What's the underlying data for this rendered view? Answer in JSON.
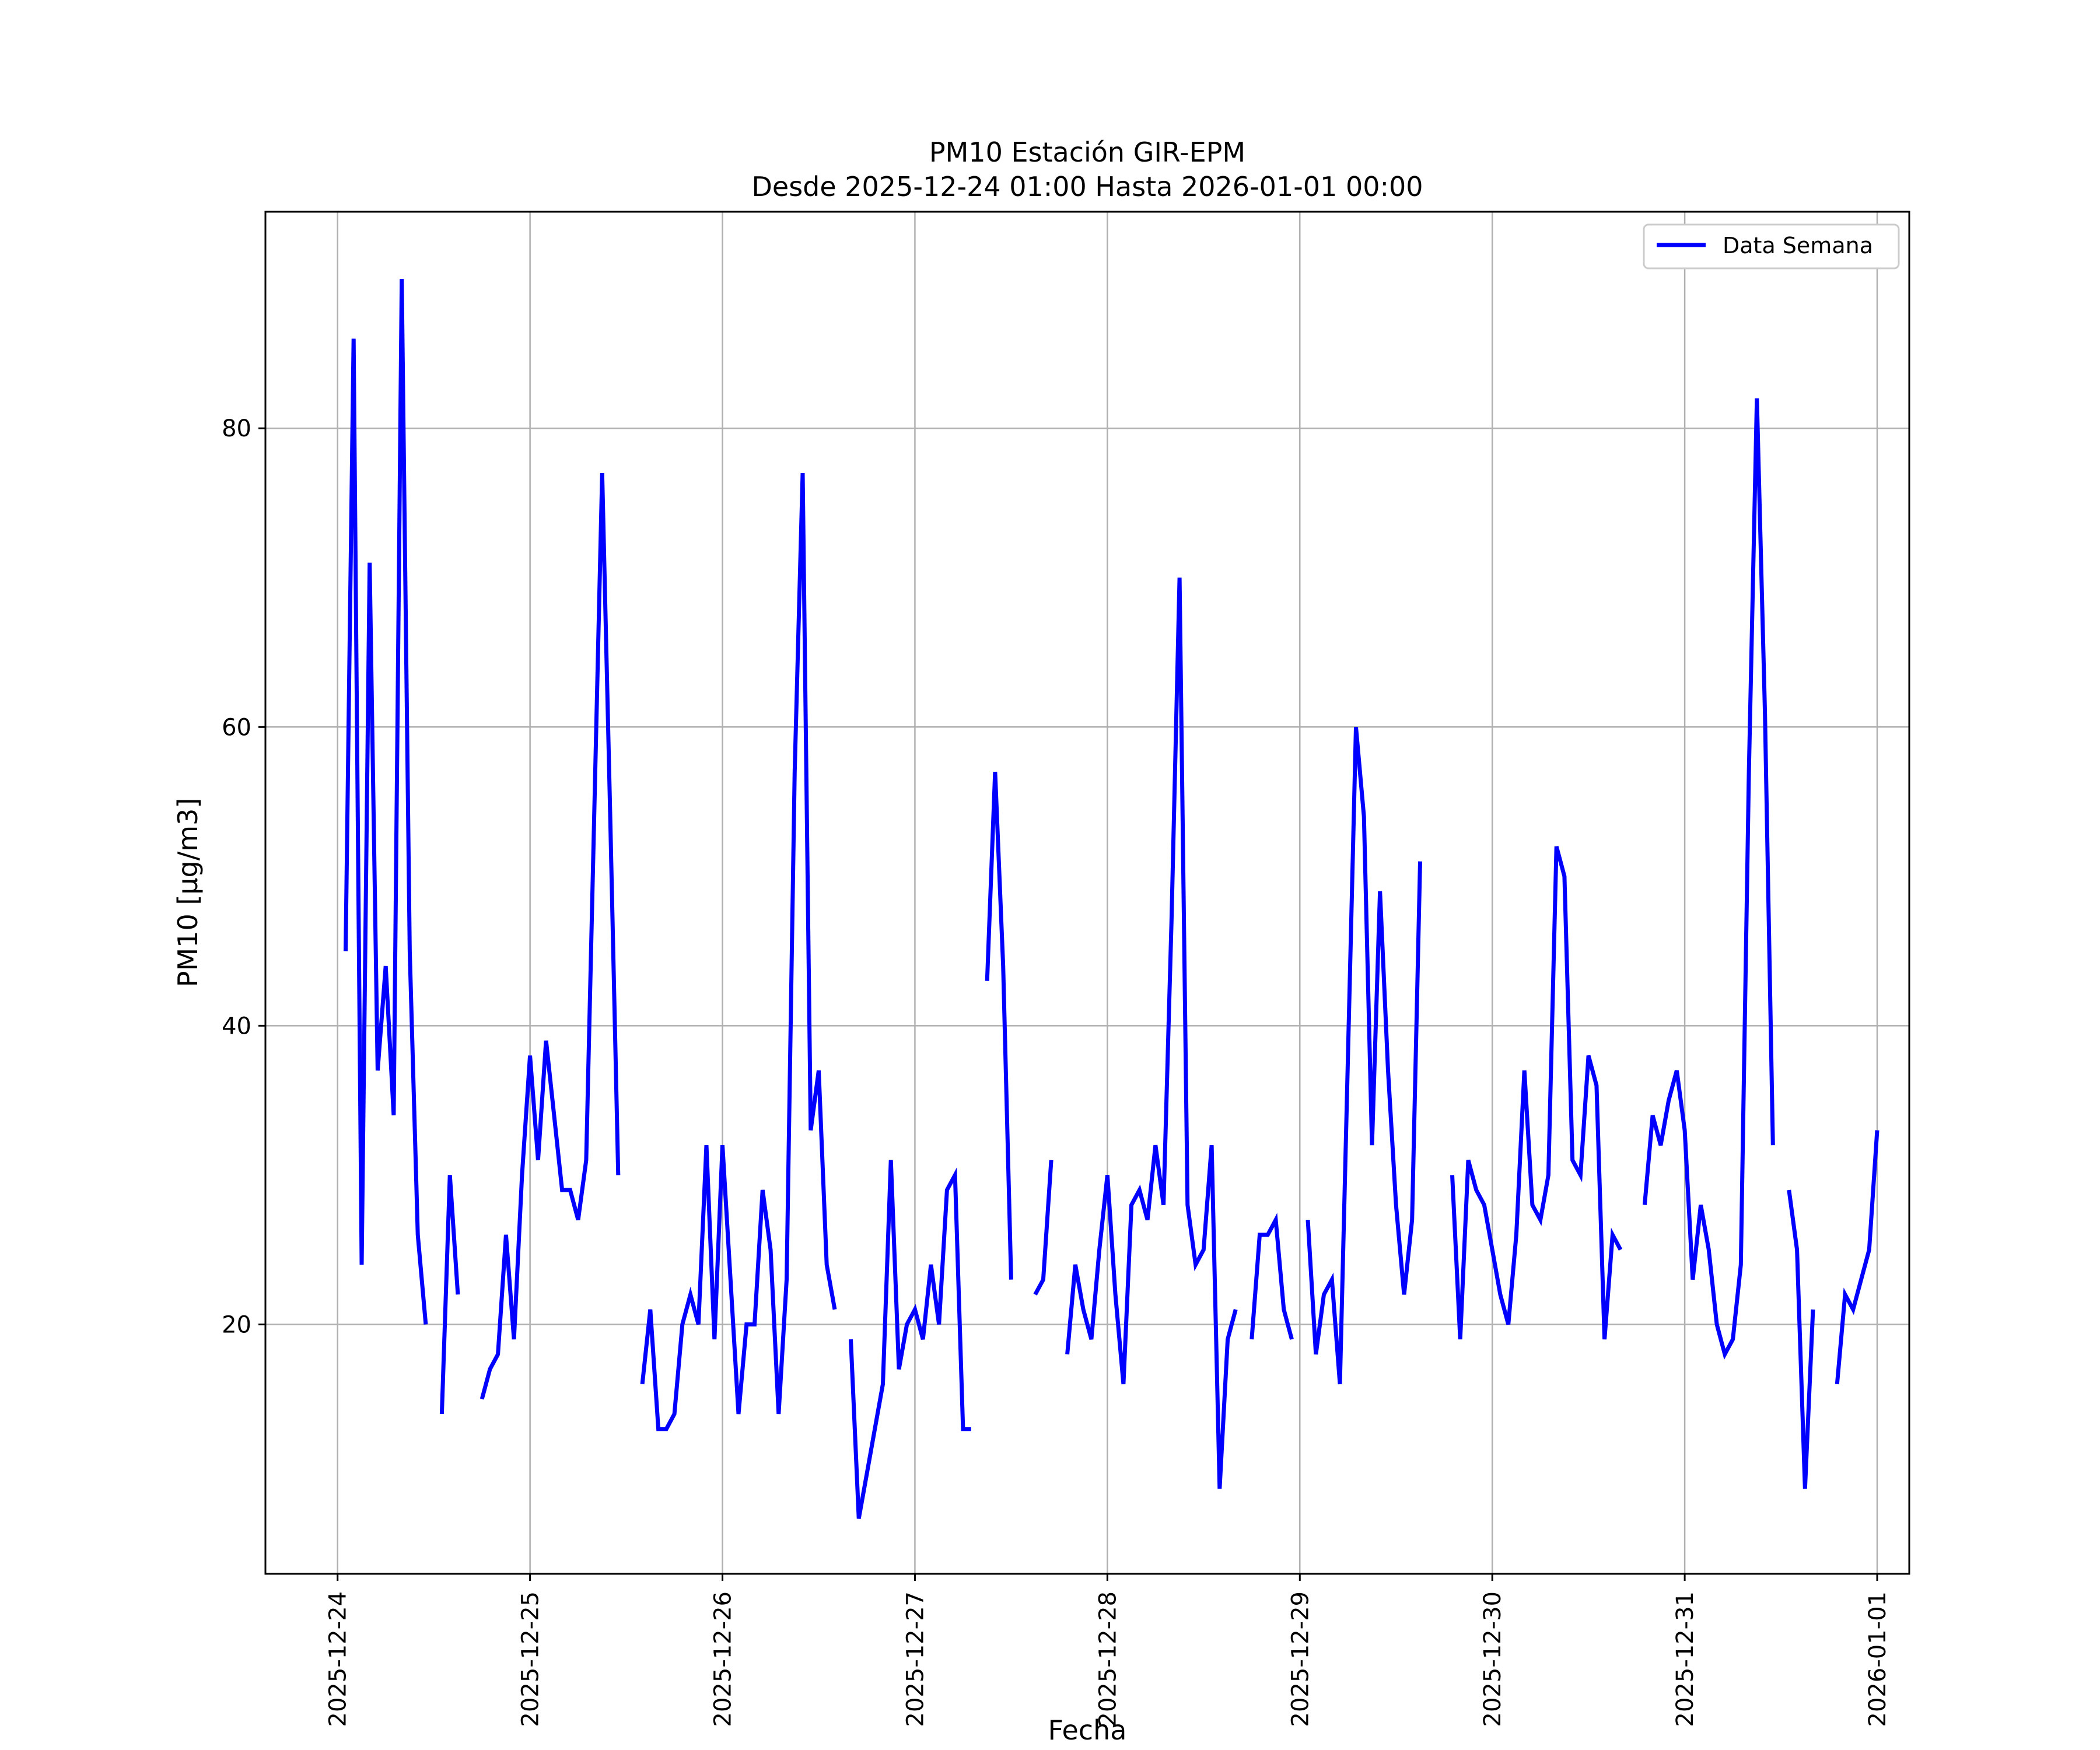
{
  "chart_data": {
    "type": "line",
    "title": "PM10 Estación GIR-EPM",
    "subtitle": "Desde 2025-12-24 01:00 Hasta 2026-01-01 00:00",
    "xlabel": "Fecha",
    "ylabel": "PM10 [μg/m3]",
    "xlim": [
      "2025-12-23 15:00",
      "2026-01-01 04:00"
    ],
    "ylim": [
      3.3,
      94.5
    ],
    "x_ticks": [
      "2025-12-24",
      "2025-12-25",
      "2025-12-26",
      "2025-12-27",
      "2025-12-28",
      "2025-12-29",
      "2025-12-30",
      "2025-12-31",
      "2026-01-01"
    ],
    "y_ticks": [
      "20",
      "40",
      "60",
      "80"
    ],
    "grid": true,
    "legend_position": "top-right",
    "line_color": "#0000ff",
    "series": [
      {
        "name": "Data Semana",
        "points": [
          [
            "2025-12-24 01:00",
            45
          ],
          [
            "2025-12-24 02:00",
            86
          ],
          [
            "2025-12-24 03:00",
            24
          ],
          [
            "2025-12-24 04:00",
            71
          ],
          [
            "2025-12-24 05:00",
            37
          ],
          [
            "2025-12-24 06:00",
            44
          ],
          [
            "2025-12-24 07:00",
            34
          ],
          [
            "2025-12-24 08:00",
            90
          ],
          [
            "2025-12-24 09:00",
            45
          ],
          [
            "2025-12-24 10:00",
            26
          ],
          [
            "2025-12-24 11:00",
            20
          ],
          [
            "2025-12-24 12:00",
            null
          ],
          [
            "2025-12-24 13:00",
            14
          ],
          [
            "2025-12-24 14:00",
            30
          ],
          [
            "2025-12-24 15:00",
            22
          ],
          [
            "2025-12-24 16:00",
            null
          ],
          [
            "2025-12-24 17:00",
            null
          ],
          [
            "2025-12-24 18:00",
            15
          ],
          [
            "2025-12-24 19:00",
            17
          ],
          [
            "2025-12-24 20:00",
            18
          ],
          [
            "2025-12-24 21:00",
            26
          ],
          [
            "2025-12-24 22:00",
            19
          ],
          [
            "2025-12-24 23:00",
            30
          ],
          [
            "2025-12-25 00:00",
            38
          ],
          [
            "2025-12-25 01:00",
            31
          ],
          [
            "2025-12-25 02:00",
            39
          ],
          [
            "2025-12-25 03:00",
            34
          ],
          [
            "2025-12-25 04:00",
            29
          ],
          [
            "2025-12-25 05:00",
            29
          ],
          [
            "2025-12-25 06:00",
            27
          ],
          [
            "2025-12-25 07:00",
            31
          ],
          [
            "2025-12-25 08:00",
            54
          ],
          [
            "2025-12-25 09:00",
            77
          ],
          [
            "2025-12-25 10:00",
            54
          ],
          [
            "2025-12-25 11:00",
            30
          ],
          [
            "2025-12-25 12:00",
            null
          ],
          [
            "2025-12-25 13:00",
            null
          ],
          [
            "2025-12-25 14:00",
            16
          ],
          [
            "2025-12-25 15:00",
            21
          ],
          [
            "2025-12-25 16:00",
            13
          ],
          [
            "2025-12-25 17:00",
            13
          ],
          [
            "2025-12-25 18:00",
            14
          ],
          [
            "2025-12-25 19:00",
            20
          ],
          [
            "2025-12-25 20:00",
            22
          ],
          [
            "2025-12-25 21:00",
            20
          ],
          [
            "2025-12-25 22:00",
            32
          ],
          [
            "2025-12-25 23:00",
            19
          ],
          [
            "2025-12-26 00:00",
            32
          ],
          [
            "2025-12-26 01:00",
            23
          ],
          [
            "2025-12-26 02:00",
            14
          ],
          [
            "2025-12-26 03:00",
            20
          ],
          [
            "2025-12-26 04:00",
            20
          ],
          [
            "2025-12-26 05:00",
            29
          ],
          [
            "2025-12-26 06:00",
            25
          ],
          [
            "2025-12-26 07:00",
            14
          ],
          [
            "2025-12-26 08:00",
            23
          ],
          [
            "2025-12-26 09:00",
            57
          ],
          [
            "2025-12-26 10:00",
            77
          ],
          [
            "2025-12-26 11:00",
            33
          ],
          [
            "2025-12-26 12:00",
            37
          ],
          [
            "2025-12-26 13:00",
            24
          ],
          [
            "2025-12-26 14:00",
            21
          ],
          [
            "2025-12-26 15:00",
            null
          ],
          [
            "2025-12-26 16:00",
            19
          ],
          [
            "2025-12-26 17:00",
            7
          ],
          [
            "2025-12-26 18:00",
            10
          ],
          [
            "2025-12-26 19:00",
            13
          ],
          [
            "2025-12-26 20:00",
            16
          ],
          [
            "2025-12-26 21:00",
            31
          ],
          [
            "2025-12-26 22:00",
            17
          ],
          [
            "2025-12-26 23:00",
            20
          ],
          [
            "2025-12-27 00:00",
            21
          ],
          [
            "2025-12-27 01:00",
            19
          ],
          [
            "2025-12-27 02:00",
            24
          ],
          [
            "2025-12-27 03:00",
            20
          ],
          [
            "2025-12-27 04:00",
            29
          ],
          [
            "2025-12-27 05:00",
            30
          ],
          [
            "2025-12-27 06:00",
            13
          ],
          [
            "2025-12-27 07:00",
            13
          ],
          [
            "2025-12-27 08:00",
            null
          ],
          [
            "2025-12-27 09:00",
            43
          ],
          [
            "2025-12-27 10:00",
            57
          ],
          [
            "2025-12-27 11:00",
            44
          ],
          [
            "2025-12-27 12:00",
            23
          ],
          [
            "2025-12-27 13:00",
            null
          ],
          [
            "2025-12-27 14:00",
            null
          ],
          [
            "2025-12-27 15:00",
            22
          ],
          [
            "2025-12-27 16:00",
            23
          ],
          [
            "2025-12-27 17:00",
            31
          ],
          [
            "2025-12-27 18:00",
            null
          ],
          [
            "2025-12-27 19:00",
            18
          ],
          [
            "2025-12-27 20:00",
            24
          ],
          [
            "2025-12-27 21:00",
            21
          ],
          [
            "2025-12-27 22:00",
            19
          ],
          [
            "2025-12-27 23:00",
            25
          ],
          [
            "2025-12-28 00:00",
            30
          ],
          [
            "2025-12-28 01:00",
            22
          ],
          [
            "2025-12-28 02:00",
            16
          ],
          [
            "2025-12-28 03:00",
            28
          ],
          [
            "2025-12-28 04:00",
            29
          ],
          [
            "2025-12-28 05:00",
            27
          ],
          [
            "2025-12-28 06:00",
            32
          ],
          [
            "2025-12-28 07:00",
            28
          ],
          [
            "2025-12-28 08:00",
            47
          ],
          [
            "2025-12-28 09:00",
            70
          ],
          [
            "2025-12-28 10:00",
            28
          ],
          [
            "2025-12-28 11:00",
            24
          ],
          [
            "2025-12-28 12:00",
            25
          ],
          [
            "2025-12-28 13:00",
            32
          ],
          [
            "2025-12-28 14:00",
            9
          ],
          [
            "2025-12-28 15:00",
            19
          ],
          [
            "2025-12-28 16:00",
            21
          ],
          [
            "2025-12-28 17:00",
            null
          ],
          [
            "2025-12-28 18:00",
            19
          ],
          [
            "2025-12-28 19:00",
            26
          ],
          [
            "2025-12-28 20:00",
            26
          ],
          [
            "2025-12-28 21:00",
            27
          ],
          [
            "2025-12-28 22:00",
            21
          ],
          [
            "2025-12-28 23:00",
            19
          ],
          [
            "2025-12-29 00:00",
            null
          ],
          [
            "2025-12-29 01:00",
            27
          ],
          [
            "2025-12-29 02:00",
            18
          ],
          [
            "2025-12-29 03:00",
            22
          ],
          [
            "2025-12-29 04:00",
            23
          ],
          [
            "2025-12-29 05:00",
            16
          ],
          [
            "2025-12-29 06:00",
            38
          ],
          [
            "2025-12-29 07:00",
            60
          ],
          [
            "2025-12-29 08:00",
            54
          ],
          [
            "2025-12-29 09:00",
            32
          ],
          [
            "2025-12-29 10:00",
            49
          ],
          [
            "2025-12-29 11:00",
            37
          ],
          [
            "2025-12-29 12:00",
            28
          ],
          [
            "2025-12-29 13:00",
            22
          ],
          [
            "2025-12-29 14:00",
            27
          ],
          [
            "2025-12-29 15:00",
            51
          ],
          [
            "2025-12-29 16:00",
            null
          ],
          [
            "2025-12-29 17:00",
            null
          ],
          [
            "2025-12-29 18:00",
            null
          ],
          [
            "2025-12-29 19:00",
            30
          ],
          [
            "2025-12-29 20:00",
            19
          ],
          [
            "2025-12-29 21:00",
            31
          ],
          [
            "2025-12-29 22:00",
            29
          ],
          [
            "2025-12-29 23:00",
            28
          ],
          [
            "2025-12-30 00:00",
            25
          ],
          [
            "2025-12-30 01:00",
            22
          ],
          [
            "2025-12-30 02:00",
            20
          ],
          [
            "2025-12-30 03:00",
            26
          ],
          [
            "2025-12-30 04:00",
            37
          ],
          [
            "2025-12-30 05:00",
            28
          ],
          [
            "2025-12-30 06:00",
            27
          ],
          [
            "2025-12-30 07:00",
            30
          ],
          [
            "2025-12-30 08:00",
            52
          ],
          [
            "2025-12-30 09:00",
            50
          ],
          [
            "2025-12-30 10:00",
            31
          ],
          [
            "2025-12-30 11:00",
            30
          ],
          [
            "2025-12-30 12:00",
            38
          ],
          [
            "2025-12-30 13:00",
            36
          ],
          [
            "2025-12-30 14:00",
            19
          ],
          [
            "2025-12-30 15:00",
            26
          ],
          [
            "2025-12-30 16:00",
            25
          ],
          [
            "2025-12-30 17:00",
            null
          ],
          [
            "2025-12-30 18:00",
            null
          ],
          [
            "2025-12-30 19:00",
            28
          ],
          [
            "2025-12-30 20:00",
            34
          ],
          [
            "2025-12-30 21:00",
            32
          ],
          [
            "2025-12-30 22:00",
            35
          ],
          [
            "2025-12-30 23:00",
            37
          ],
          [
            "2025-12-31 00:00",
            33
          ],
          [
            "2025-12-31 01:00",
            23
          ],
          [
            "2025-12-31 02:00",
            28
          ],
          [
            "2025-12-31 03:00",
            25
          ],
          [
            "2025-12-31 04:00",
            20
          ],
          [
            "2025-12-31 05:00",
            18
          ],
          [
            "2025-12-31 06:00",
            19
          ],
          [
            "2025-12-31 07:00",
            24
          ],
          [
            "2025-12-31 08:00",
            57
          ],
          [
            "2025-12-31 09:00",
            82
          ],
          [
            "2025-12-31 10:00",
            61
          ],
          [
            "2025-12-31 11:00",
            32
          ],
          [
            "2025-12-31 12:00",
            null
          ],
          [
            "2025-12-31 13:00",
            29
          ],
          [
            "2025-12-31 14:00",
            25
          ],
          [
            "2025-12-31 15:00",
            9
          ],
          [
            "2025-12-31 16:00",
            21
          ],
          [
            "2025-12-31 17:00",
            null
          ],
          [
            "2025-12-31 18:00",
            null
          ],
          [
            "2025-12-31 19:00",
            16
          ],
          [
            "2025-12-31 20:00",
            22
          ],
          [
            "2025-12-31 21:00",
            21
          ],
          [
            "2025-12-31 22:00",
            23
          ],
          [
            "2025-12-31 23:00",
            25
          ],
          [
            "2026-01-01 00:00",
            33
          ]
        ]
      }
    ]
  }
}
